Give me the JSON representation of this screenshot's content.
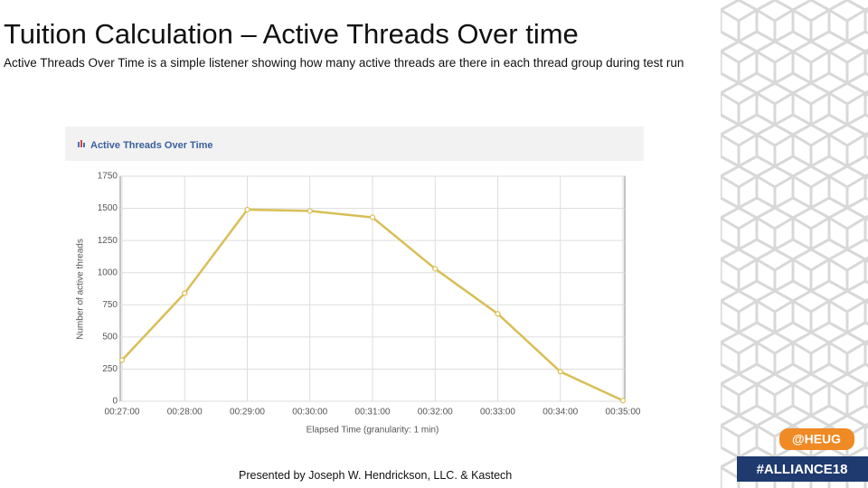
{
  "slide": {
    "title": "Tuition Calculation – Active Threads Over time",
    "subtitle": "Active Threads Over Time is a simple listener showing how many active threads are there in each thread group during test run",
    "footer": "Presented by Joseph W. Hendrickson, LLC. & Kastech",
    "tags": [
      "@HEUG",
      "#ALLIANCE18"
    ]
  },
  "chart_data": {
    "type": "line",
    "title": "Active Threads Over Time",
    "x_label": "Elapsed Time (granularity: 1 min)",
    "y_label": "Number of active threads",
    "categories": [
      "00:27:00",
      "00:28:00",
      "00:29:00",
      "00:30:00",
      "00:31:00",
      "00:32:00",
      "00:33:00",
      "00:34:00",
      "00:35:00"
    ],
    "values": [
      320,
      840,
      1490,
      1480,
      1430,
      1030,
      680,
      230,
      5
    ],
    "color": "#d9be55",
    "ylim": [
      0,
      1750
    ],
    "yticks": [
      0,
      250,
      500,
      750,
      1000,
      1250,
      1500,
      1750
    ],
    "grid": true
  }
}
